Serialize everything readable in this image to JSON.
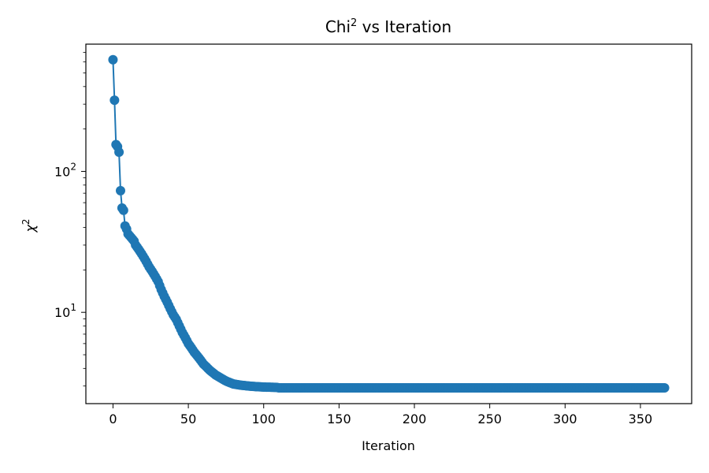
{
  "chart_data": {
    "type": "line",
    "title_base": "Chi",
    "title_sup": "2",
    "title_rest": " vs Iteration",
    "xlabel": "Iteration",
    "ylabel_base": "χ",
    "ylabel_sup": "2",
    "x_scale": "linear",
    "y_scale": "log",
    "xlim": [
      -18,
      384
    ],
    "ylim": [
      2.25,
      800
    ],
    "grid": false,
    "marker": "circle",
    "color": "#1f77b4",
    "x_ticks": [
      {
        "value": 0,
        "label": "0"
      },
      {
        "value": 50,
        "label": "50"
      },
      {
        "value": 100,
        "label": "100"
      },
      {
        "value": 150,
        "label": "150"
      },
      {
        "value": 200,
        "label": "200"
      },
      {
        "value": 250,
        "label": "250"
      },
      {
        "value": 300,
        "label": "300"
      },
      {
        "value": 350,
        "label": "350"
      }
    ],
    "y_major_ticks": [
      {
        "value": 10,
        "base": "10",
        "exp": "1"
      },
      {
        "value": 100,
        "base": "10",
        "exp": "2"
      }
    ],
    "y_minor_ticks": [
      3,
      4,
      5,
      6,
      7,
      8,
      9,
      20,
      30,
      40,
      50,
      60,
      70,
      80,
      90,
      200,
      300,
      400,
      500,
      600,
      700
    ],
    "series": [
      {
        "x": [
          0,
          1,
          2,
          3,
          4,
          5,
          6,
          7,
          8,
          9,
          10,
          11,
          12,
          13,
          14,
          15,
          16,
          17,
          18,
          19,
          20,
          22,
          24,
          26,
          28,
          30,
          32,
          34,
          36,
          38,
          40,
          42,
          44,
          46,
          48,
          50,
          52,
          54,
          56,
          58,
          60,
          62,
          64,
          66,
          68,
          70,
          72,
          74,
          76,
          78,
          80,
          85,
          90,
          95,
          100,
          105,
          110,
          115,
          120,
          130,
          140,
          150,
          160,
          170,
          180,
          190,
          200,
          210,
          220,
          230,
          240,
          250,
          260,
          270,
          280,
          290,
          300,
          310,
          320,
          330,
          340,
          350,
          360,
          366
        ],
        "y": [
          620,
          320,
          155,
          150,
          137,
          73,
          55,
          53,
          41,
          39,
          36,
          35,
          34,
          33,
          32,
          30,
          29,
          28,
          27,
          26,
          25,
          23,
          21,
          19.5,
          18,
          16.5,
          14.5,
          13,
          11.8,
          10.6,
          9.6,
          8.9,
          8.0,
          7.2,
          6.6,
          6.0,
          5.6,
          5.2,
          4.9,
          4.6,
          4.3,
          4.1,
          3.9,
          3.75,
          3.6,
          3.5,
          3.4,
          3.3,
          3.22,
          3.16,
          3.1,
          3.04,
          3.0,
          2.97,
          2.95,
          2.94,
          2.93,
          2.92,
          2.92,
          2.91,
          2.91,
          2.91,
          2.91,
          2.91,
          2.91,
          2.91,
          2.91,
          2.91,
          2.91,
          2.91,
          2.91,
          2.91,
          2.91,
          2.91,
          2.91,
          2.91,
          2.91,
          2.91,
          2.91,
          2.91,
          2.91,
          2.91,
          2.91,
          2.91
        ]
      }
    ]
  }
}
